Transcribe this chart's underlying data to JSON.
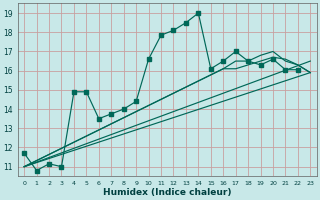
{
  "xlabel": "Humidex (Indice chaleur)",
  "bg_color": "#c8e8e8",
  "grid_color": "#c8a0a0",
  "line_color": "#006858",
  "xlim": [
    -0.5,
    23.5
  ],
  "ylim": [
    10.5,
    19.5
  ],
  "xticks": [
    0,
    1,
    2,
    3,
    4,
    5,
    6,
    7,
    8,
    9,
    10,
    11,
    12,
    13,
    14,
    15,
    16,
    17,
    18,
    19,
    20,
    21,
    22,
    23
  ],
  "yticks": [
    11,
    12,
    13,
    14,
    15,
    16,
    17,
    18,
    19
  ],
  "line1": {
    "x": [
      0,
      1,
      2,
      3,
      4,
      5,
      6,
      7,
      8,
      9,
      10,
      11,
      12,
      13,
      14,
      15,
      16,
      17,
      18,
      19,
      20,
      21,
      22
    ],
    "y": [
      11.7,
      10.8,
      11.15,
      11.0,
      14.9,
      14.9,
      13.5,
      13.75,
      14.0,
      14.4,
      16.6,
      17.85,
      18.1,
      18.5,
      19.0,
      16.1,
      16.5,
      17.0,
      16.5,
      16.3,
      16.6,
      16.05,
      16.05
    ]
  },
  "line2": {
    "x": [
      0,
      16,
      17,
      18,
      19,
      20,
      21,
      22,
      23
    ],
    "y": [
      11.0,
      16.1,
      16.5,
      16.5,
      16.8,
      17.0,
      16.5,
      16.3,
      15.9
    ]
  },
  "line3": {
    "x": [
      0,
      16,
      17,
      18,
      19,
      20,
      21,
      22,
      23
    ],
    "y": [
      11.0,
      16.1,
      16.1,
      16.3,
      16.5,
      16.7,
      16.6,
      16.3,
      15.9
    ]
  },
  "line4": {
    "x": [
      0,
      23
    ],
    "y": [
      11.0,
      15.9
    ]
  },
  "line5": {
    "x": [
      0,
      23
    ],
    "y": [
      11.0,
      16.5
    ]
  }
}
